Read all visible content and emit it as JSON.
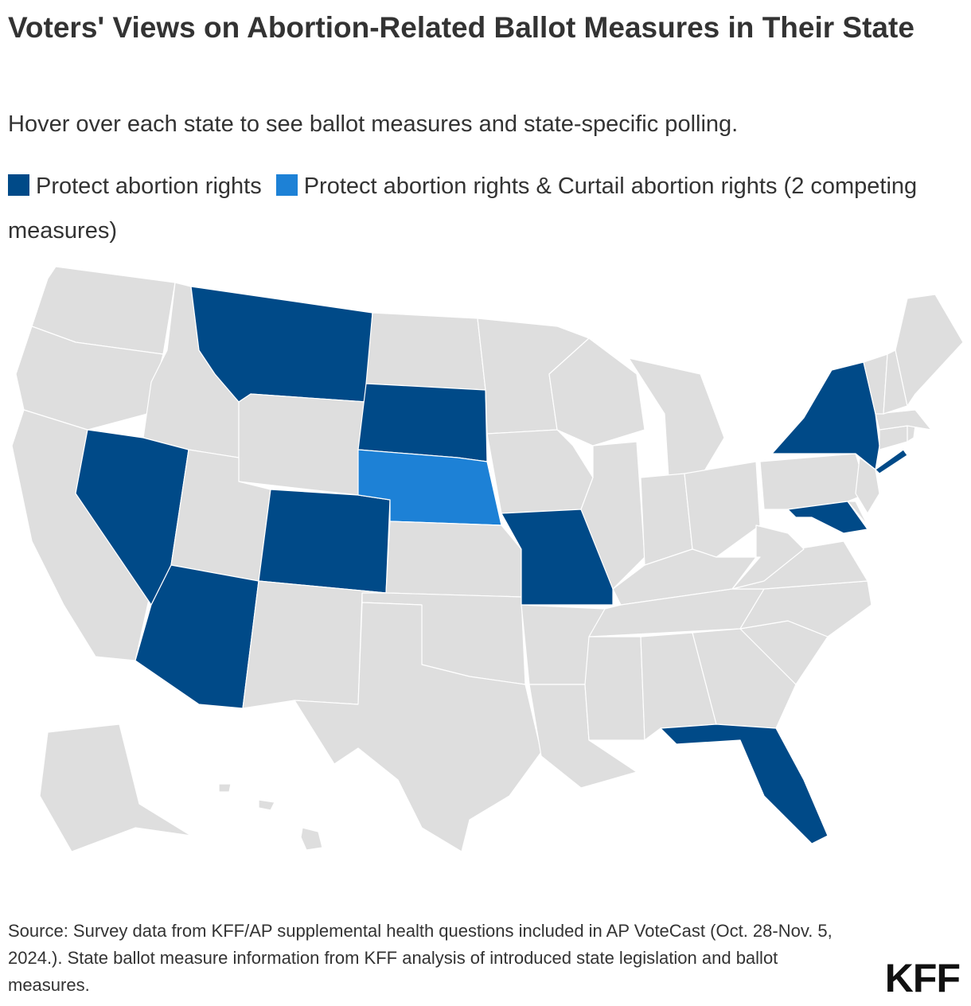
{
  "title": "Voters' Views on Abortion-Related Ballot Measures in Their State",
  "subtitle": "Hover over each state to see ballot measures and state-specific polling.",
  "legend": [
    {
      "label": "Protect abortion rights",
      "color": "#004a88"
    },
    {
      "label": "Protect abortion rights & Curtail abortion rights (2 competing measures)",
      "color": "#1d81d6"
    }
  ],
  "colors": {
    "no_measure": "#dedede",
    "border": "#ffffff"
  },
  "states": {
    "protect": [
      "MT",
      "NV",
      "AZ",
      "CO",
      "SD",
      "MO",
      "NY",
      "MD",
      "FL"
    ],
    "protect_and_curtail": [
      "NE"
    ]
  },
  "source": "Source: Survey data from KFF/AP supplemental health questions included in AP VoteCast (Oct. 28-Nov. 5, 2024.). State ballot measure information from KFF analysis of introduced state legislation and ballot measures.",
  "logo": "KFF"
}
